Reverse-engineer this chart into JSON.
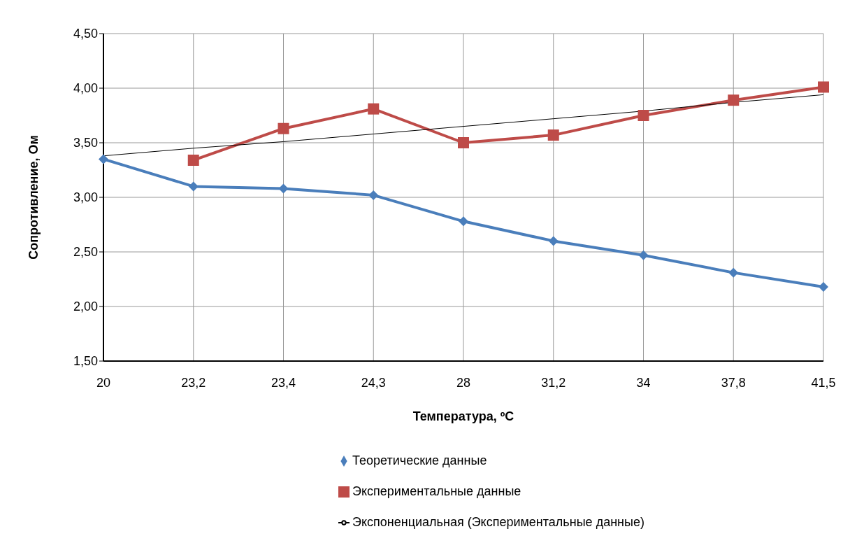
{
  "chart_data": {
    "type": "line",
    "xlabel": "Температура, ºC",
    "ylabel": "Сопротивление, Ом",
    "categories": [
      "20",
      "23,2",
      "23,4",
      "24,3",
      "28",
      "31,2",
      "34",
      "37,8",
      "41,5"
    ],
    "series": [
      {
        "name": "Теоретические данные",
        "color": "#4a7ebb",
        "marker": "diamond",
        "values": [
          3.35,
          3.1,
          3.08,
          3.02,
          2.78,
          2.6,
          2.47,
          2.31,
          2.18
        ]
      },
      {
        "name": "Экспериментальные данные",
        "color": "#be4b48",
        "marker": "square",
        "values": [
          null,
          3.34,
          3.63,
          3.81,
          3.5,
          3.57,
          3.75,
          3.89,
          4.01
        ]
      },
      {
        "name": "Экспоненциальная (Экспериментальные данные)",
        "color": "#000000",
        "marker": "none",
        "values": [
          3.38,
          3.45,
          3.51,
          3.58,
          3.65,
          3.72,
          3.79,
          3.87,
          3.94
        ]
      }
    ],
    "ylim": [
      1.5,
      4.5
    ],
    "yticks": [
      {
        "value": 1.5,
        "label": "1,50"
      },
      {
        "value": 2,
        "label": "2,00"
      },
      {
        "value": 2.5,
        "label": "2,50"
      },
      {
        "value": 3,
        "label": "3,00"
      },
      {
        "value": 3.5,
        "label": "3,50"
      },
      {
        "value": 4,
        "label": "4,00"
      },
      {
        "value": 4.5,
        "label": "4,50"
      }
    ],
    "grid": true,
    "legend": "bottom"
  }
}
